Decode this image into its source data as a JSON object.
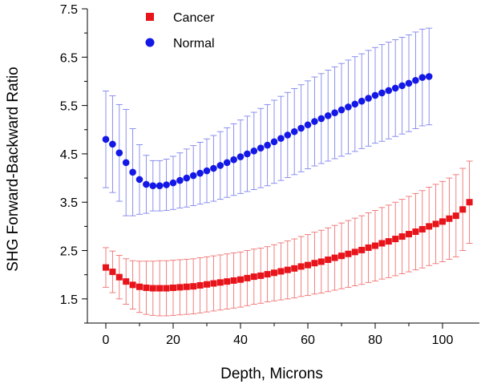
{
  "chart_data": {
    "type": "scatter",
    "title": "",
    "xlabel": "Depth, Microns",
    "ylabel": "SHG Forward-Backward Ratio",
    "xlim": [
      -3,
      110
    ],
    "ylim": [
      1.0,
      7.5
    ],
    "x_ticks": [
      0,
      20,
      40,
      60,
      80,
      100
    ],
    "x_minor_ticks": [
      10,
      30,
      50,
      70,
      90
    ],
    "y_ticks": [
      1.5,
      2.5,
      3.5,
      4.5,
      5.5,
      6.5,
      7.5
    ],
    "y_minor_ticks": [
      1.0,
      2.0,
      3.0,
      4.0,
      5.0,
      6.0,
      7.0
    ],
    "legend_position": "top-left",
    "series": [
      {
        "name": "Cancer",
        "marker": "square",
        "color": "#e8141b",
        "error_color": "#f07070",
        "x": [
          0,
          2,
          4,
          6,
          8,
          10,
          12,
          14,
          16,
          18,
          20,
          22,
          24,
          26,
          28,
          30,
          32,
          34,
          36,
          38,
          40,
          42,
          44,
          46,
          48,
          50,
          52,
          54,
          56,
          58,
          60,
          62,
          64,
          66,
          68,
          70,
          72,
          74,
          76,
          78,
          80,
          82,
          84,
          86,
          88,
          90,
          92,
          94,
          96,
          98,
          100,
          102,
          104,
          106,
          108
        ],
        "y": [
          2.15,
          2.06,
          1.95,
          1.86,
          1.79,
          1.75,
          1.73,
          1.72,
          1.72,
          1.72,
          1.73,
          1.74,
          1.75,
          1.76,
          1.78,
          1.8,
          1.82,
          1.84,
          1.86,
          1.88,
          1.9,
          1.93,
          1.96,
          1.98,
          2.01,
          2.04,
          2.07,
          2.1,
          2.13,
          2.17,
          2.2,
          2.24,
          2.27,
          2.31,
          2.35,
          2.39,
          2.43,
          2.47,
          2.51,
          2.56,
          2.6,
          2.65,
          2.69,
          2.74,
          2.79,
          2.84,
          2.89,
          2.94,
          3.0,
          3.05,
          3.1,
          3.16,
          3.22,
          3.35,
          3.5
        ],
        "error": [
          0.41,
          0.43,
          0.45,
          0.47,
          0.5,
          0.53,
          0.55,
          0.56,
          0.57,
          0.57,
          0.57,
          0.57,
          0.57,
          0.57,
          0.57,
          0.57,
          0.57,
          0.57,
          0.57,
          0.57,
          0.57,
          0.57,
          0.57,
          0.57,
          0.57,
          0.58,
          0.59,
          0.6,
          0.61,
          0.62,
          0.63,
          0.64,
          0.65,
          0.66,
          0.67,
          0.68,
          0.69,
          0.7,
          0.71,
          0.72,
          0.73,
          0.74,
          0.75,
          0.76,
          0.77,
          0.78,
          0.79,
          0.8,
          0.81,
          0.82,
          0.83,
          0.84,
          0.85,
          0.85,
          0.85
        ]
      },
      {
        "name": "Normal",
        "marker": "circle",
        "color": "#1418e6",
        "error_color": "#7f84ec",
        "x": [
          0,
          2,
          4,
          6,
          8,
          10,
          12,
          14,
          16,
          18,
          20,
          22,
          24,
          26,
          28,
          30,
          32,
          34,
          36,
          38,
          40,
          42,
          44,
          46,
          48,
          50,
          52,
          54,
          56,
          58,
          60,
          62,
          64,
          66,
          68,
          70,
          72,
          74,
          76,
          78,
          80,
          82,
          84,
          86,
          88,
          90,
          92,
          94,
          96
        ],
        "y": [
          4.8,
          4.7,
          4.52,
          4.32,
          4.12,
          3.97,
          3.87,
          3.84,
          3.84,
          3.86,
          3.9,
          3.95,
          4.0,
          4.05,
          4.1,
          4.15,
          4.2,
          4.26,
          4.32,
          4.38,
          4.44,
          4.5,
          4.56,
          4.62,
          4.68,
          4.75,
          4.82,
          4.89,
          4.96,
          5.03,
          5.1,
          5.17,
          5.23,
          5.29,
          5.35,
          5.41,
          5.47,
          5.53,
          5.59,
          5.65,
          5.71,
          5.76,
          5.81,
          5.86,
          5.91,
          5.96,
          6.02,
          6.08,
          6.1
        ],
        "error": [
          1.0,
          1.0,
          1.0,
          1.1,
          0.9,
          0.72,
          0.6,
          0.52,
          0.52,
          0.53,
          0.55,
          0.57,
          0.6,
          0.62,
          0.64,
          0.66,
          0.68,
          0.7,
          0.72,
          0.74,
          0.76,
          0.78,
          0.8,
          0.82,
          0.84,
          0.86,
          0.87,
          0.88,
          0.89,
          0.9,
          0.91,
          0.92,
          0.93,
          0.94,
          0.95,
          0.96,
          0.97,
          0.98,
          0.98,
          0.99,
          0.99,
          1.0,
          1.0,
          1.0,
          1.0,
          1.0,
          1.0,
          1.0,
          1.0
        ]
      }
    ]
  }
}
